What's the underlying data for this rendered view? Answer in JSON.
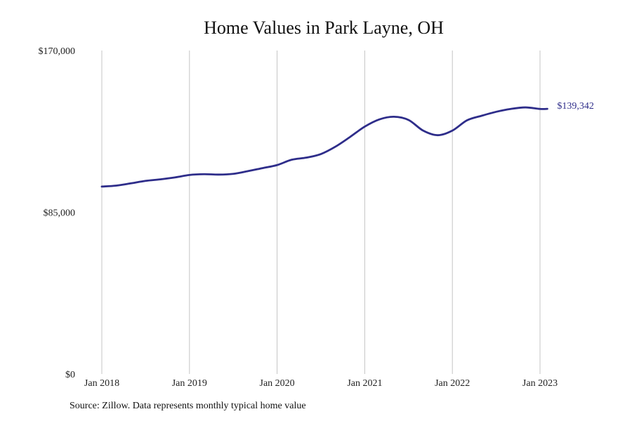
{
  "chart_data": {
    "type": "line",
    "title": "Home Values in Park Layne, OH",
    "xlabel": "",
    "ylabel": "",
    "x_axis": {
      "type": "date",
      "range": [
        "2018-01",
        "2023-03"
      ],
      "tick_values": [
        "2018-01",
        "2019-01",
        "2020-01",
        "2021-01",
        "2022-01",
        "2023-01"
      ],
      "tick_labels": [
        "Jan 2018",
        "Jan 2019",
        "Jan 2020",
        "Jan 2021",
        "Jan 2022",
        "Jan 2023"
      ]
    },
    "y_axis": {
      "range": [
        0,
        170000
      ],
      "tick_values": [
        0,
        85000,
        170000
      ],
      "tick_labels": [
        "$0",
        "$85,000",
        "$170,000"
      ]
    },
    "grid": {
      "vertical": true,
      "horizontal": false
    },
    "legend": "none",
    "series": [
      {
        "color": "#2e2d8a",
        "end_label": "$139,342",
        "points": [
          {
            "x": "2018-01",
            "y": 98500
          },
          {
            "x": "2018-03",
            "y": 99000
          },
          {
            "x": "2018-05",
            "y": 100200
          },
          {
            "x": "2018-07",
            "y": 101500
          },
          {
            "x": "2018-09",
            "y": 102300
          },
          {
            "x": "2018-11",
            "y": 103300
          },
          {
            "x": "2019-01",
            "y": 104600
          },
          {
            "x": "2019-03",
            "y": 105000
          },
          {
            "x": "2019-05",
            "y": 104800
          },
          {
            "x": "2019-07",
            "y": 105200
          },
          {
            "x": "2019-09",
            "y": 106600
          },
          {
            "x": "2019-11",
            "y": 108200
          },
          {
            "x": "2020-01",
            "y": 109800
          },
          {
            "x": "2020-03",
            "y": 112600
          },
          {
            "x": "2020-05",
            "y": 113700
          },
          {
            "x": "2020-07",
            "y": 115600
          },
          {
            "x": "2020-09",
            "y": 119500
          },
          {
            "x": "2020-11",
            "y": 124600
          },
          {
            "x": "2021-01",
            "y": 130000
          },
          {
            "x": "2021-03",
            "y": 133800
          },
          {
            "x": "2021-05",
            "y": 135200
          },
          {
            "x": "2021-07",
            "y": 133500
          },
          {
            "x": "2021-09",
            "y": 127900
          },
          {
            "x": "2021-11",
            "y": 125500
          },
          {
            "x": "2022-01",
            "y": 127900
          },
          {
            "x": "2022-03",
            "y": 133300
          },
          {
            "x": "2022-05",
            "y": 135700
          },
          {
            "x": "2022-07",
            "y": 137800
          },
          {
            "x": "2022-09",
            "y": 139300
          },
          {
            "x": "2022-11",
            "y": 140100
          },
          {
            "x": "2023-01",
            "y": 139300
          },
          {
            "x": "2023-02",
            "y": 139342
          }
        ]
      }
    ]
  },
  "source_note": "Source: Zillow. Data represents monthly typical home value"
}
